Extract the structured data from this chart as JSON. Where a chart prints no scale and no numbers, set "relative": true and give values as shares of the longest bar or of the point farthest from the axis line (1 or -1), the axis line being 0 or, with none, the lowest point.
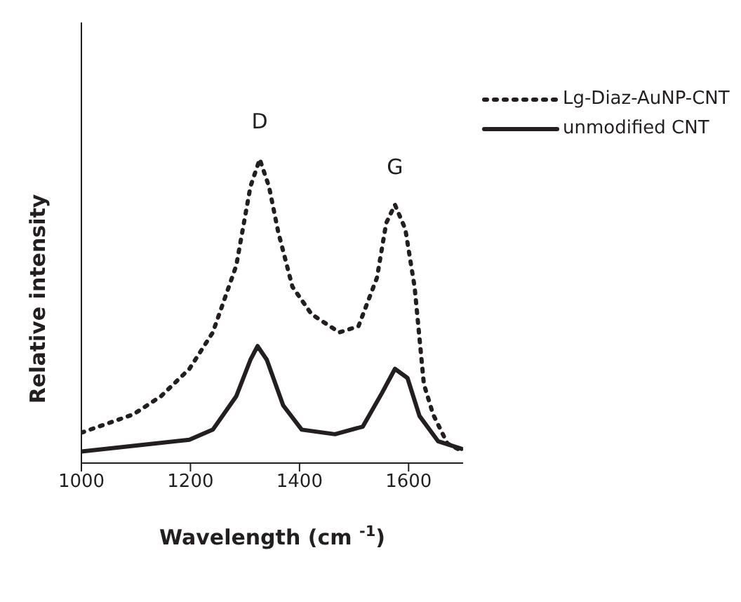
{
  "chart_data": {
    "type": "line",
    "relative": true,
    "xlabel": "Wavelength (cm $^{-1}$)",
    "ylabel": "Relative intensity",
    "xlim": [
      1000,
      1700
    ],
    "xticks": [
      1000,
      1200,
      1400,
      1600
    ],
    "legend": "top right",
    "grid": false,
    "marker": "none",
    "annotations": [
      "D",
      "G"
    ],
    "series": [
      {
        "name": "Lg-Diaz-AuNP-CNT",
        "color": "#231f20",
        "line_style": "dotted",
        "x": [
          1000,
          1095,
          1146,
          1198,
          1241,
          1284,
          1310,
          1327,
          1344,
          1361,
          1387,
          1422,
          1473,
          1508,
          1542,
          1559,
          1575,
          1594,
          1611,
          1628,
          1645,
          1671,
          1697
        ],
        "values": [
          0.1,
          0.16,
          0.22,
          0.31,
          0.43,
          0.65,
          0.91,
          1.0,
          0.91,
          0.76,
          0.58,
          0.49,
          0.43,
          0.45,
          0.61,
          0.79,
          0.85,
          0.77,
          0.58,
          0.26,
          0.16,
          0.065,
          0.04
        ]
      },
      {
        "name": "unmodified CNT",
        "color": "#231f20",
        "line_style": "solid",
        "x": [
          1000,
          1198,
          1241,
          1284,
          1310,
          1323,
          1340,
          1370,
          1404,
          1465,
          1516,
          1551,
          1575,
          1598,
          1620,
          1654,
          1697
        ],
        "values": [
          0.038,
          0.077,
          0.11,
          0.22,
          0.34,
          0.385,
          0.34,
          0.19,
          0.11,
          0.095,
          0.12,
          0.23,
          0.31,
          0.28,
          0.155,
          0.072,
          0.047
        ]
      }
    ]
  }
}
